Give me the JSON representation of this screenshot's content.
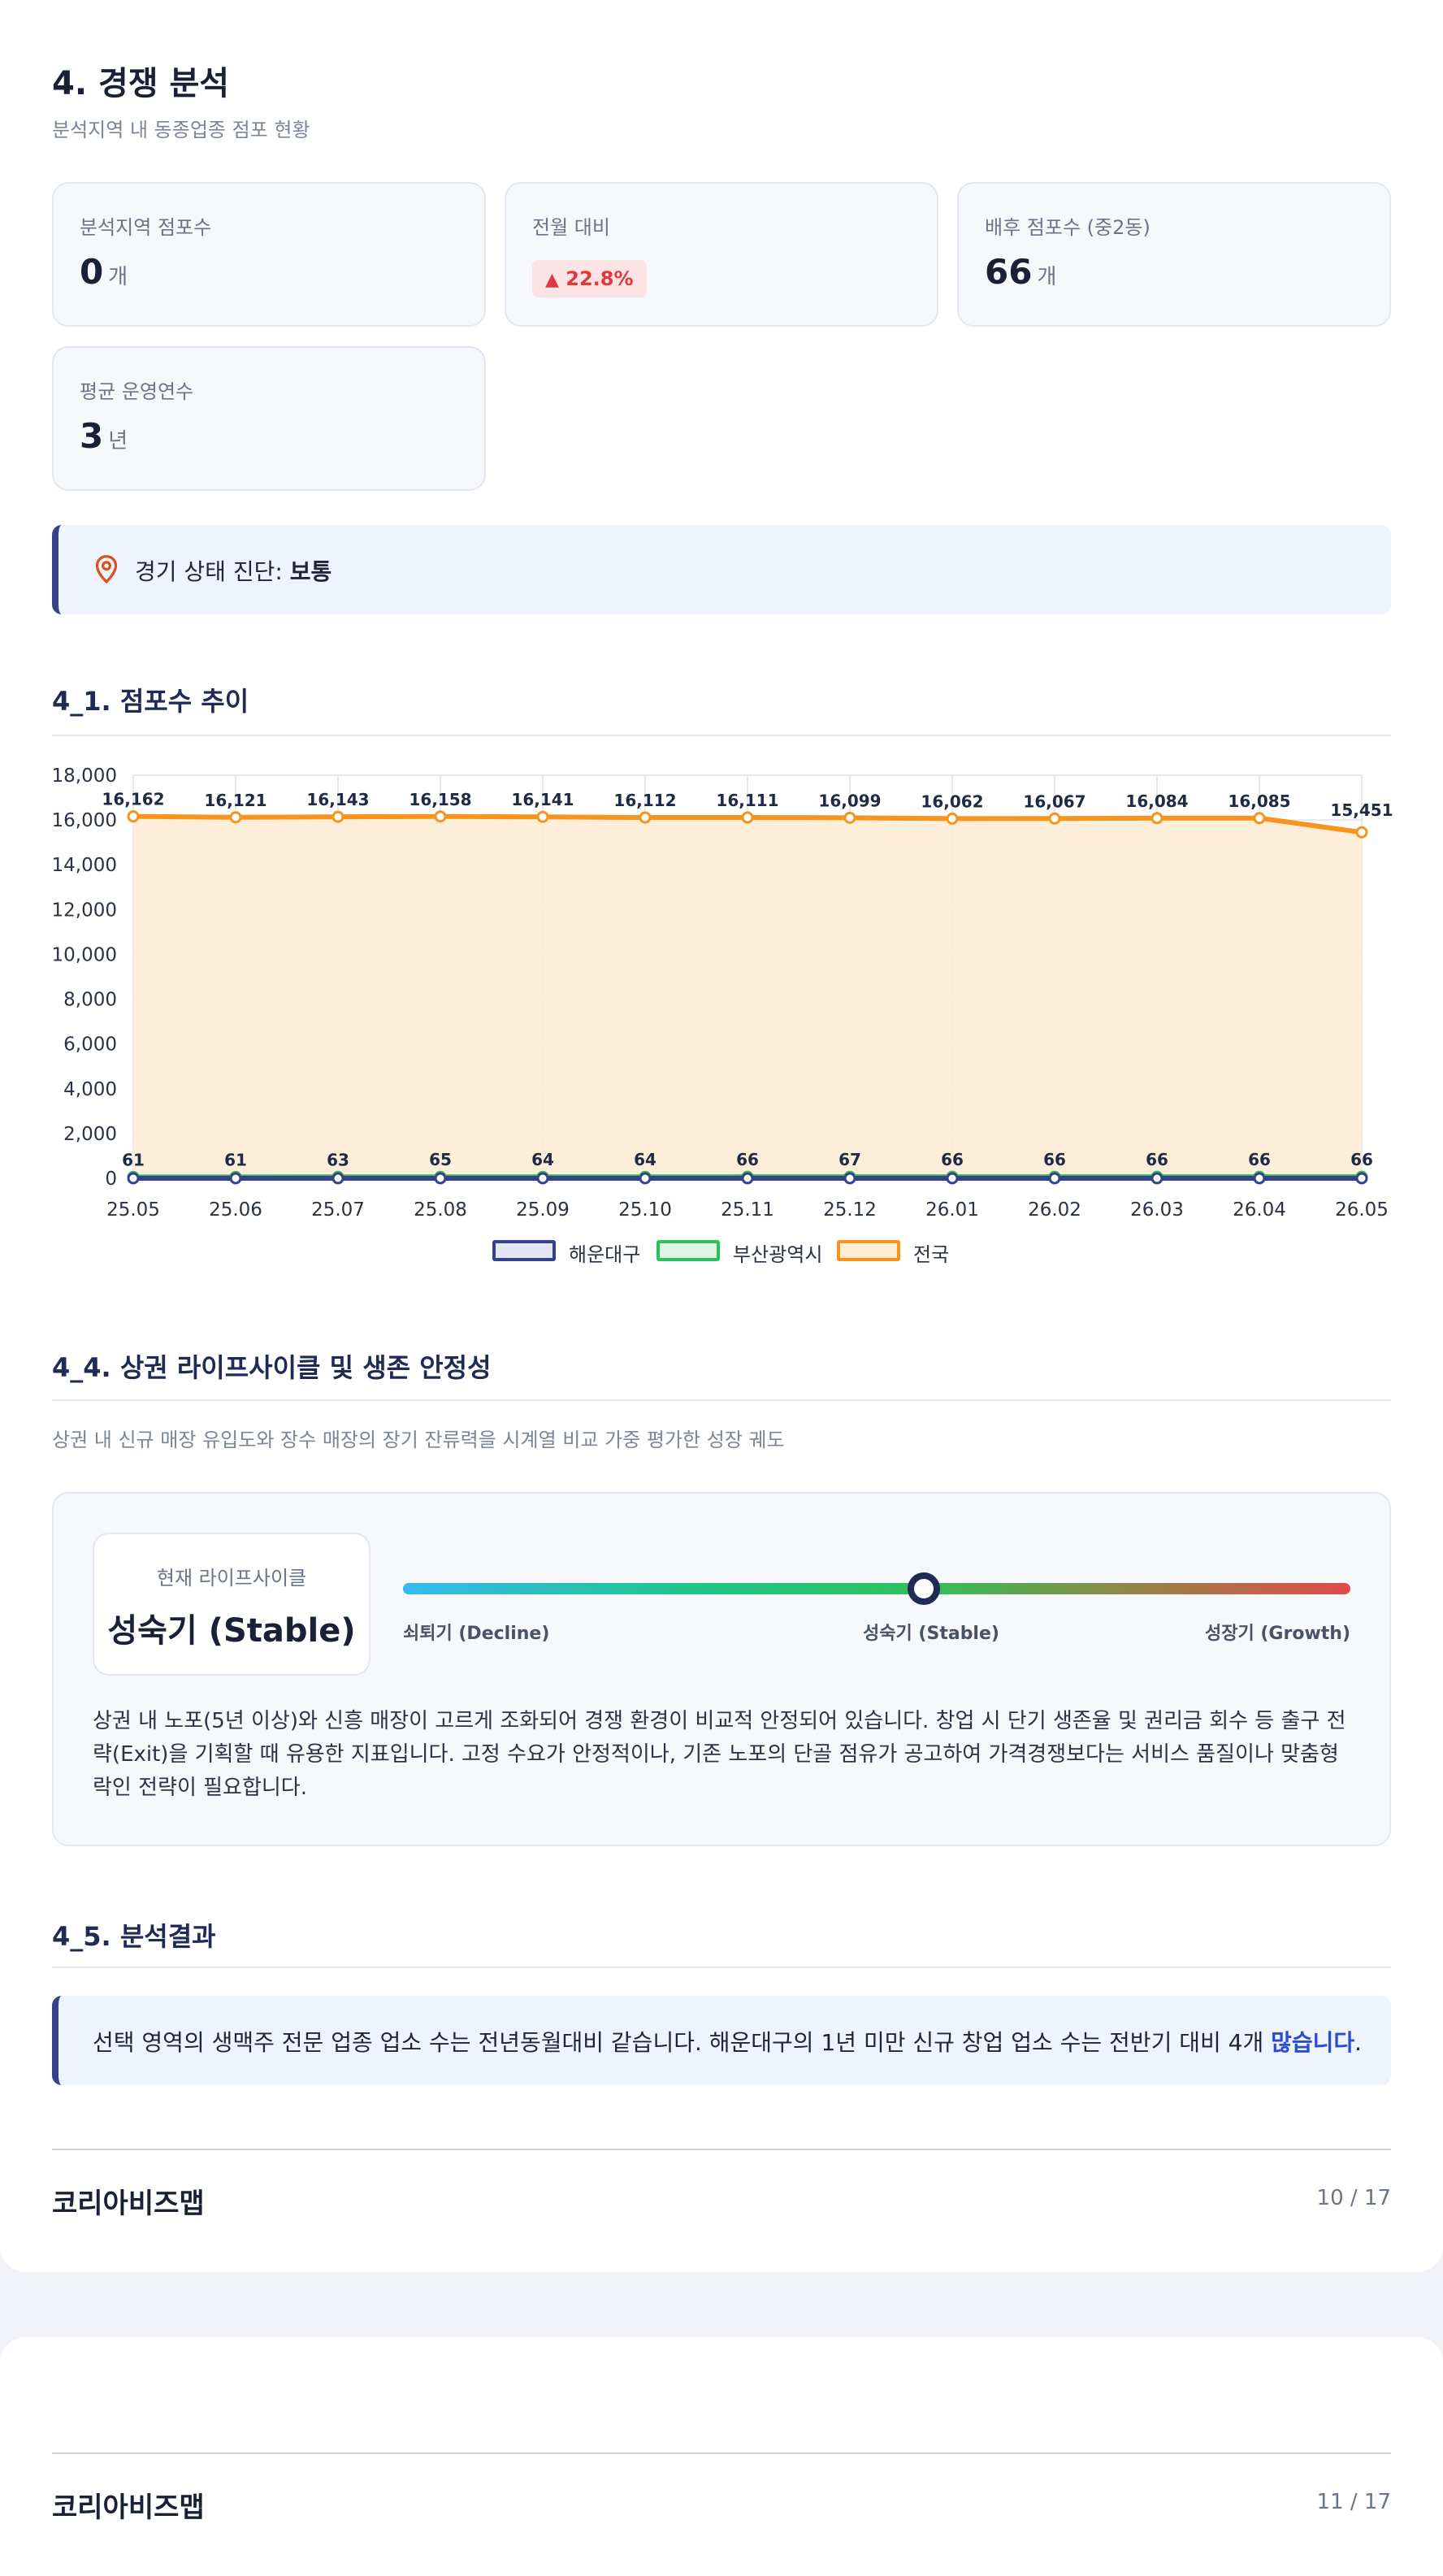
{
  "section": {
    "title": "4. 경쟁 분석",
    "subtitle": "분석지역 내 동종업종 점포 현황"
  },
  "stats": [
    {
      "label": "분석지역 점포수",
      "value": "0",
      "unit": "개"
    },
    {
      "label": "전월 대비",
      "badge": "22.8%",
      "badge_icon": "triangle-up-icon",
      "badge_color": "#e0383c"
    },
    {
      "label": "배후 점포수 (중2동)",
      "value": "66",
      "unit": "개"
    },
    {
      "label": "평균 운영연수",
      "value": "3",
      "unit": "년"
    }
  ],
  "diagnosis": {
    "icon": "map-pin-icon",
    "label": "경기 상태 진단: ",
    "value": "보통"
  },
  "store_trend": {
    "title": "4_1. 점포수 추이"
  },
  "chart_data": {
    "type": "area",
    "categories": [
      "25.05",
      "25.06",
      "25.07",
      "25.08",
      "25.09",
      "25.10",
      "25.11",
      "25.12",
      "26.01",
      "26.02",
      "26.03",
      "26.04",
      "26.05"
    ],
    "y_ticks": [
      "0",
      "2,000",
      "4,000",
      "6,000",
      "8,000",
      "10,000",
      "12,000",
      "14,000",
      "16,000",
      "18,000"
    ],
    "ylim": [
      0,
      18000
    ],
    "grid": true,
    "legend_position": "bottom",
    "series": [
      {
        "name": "해운대구",
        "color": "#34428a",
        "fill": "#e3e7f5",
        "values": [
          0,
          0,
          0,
          0,
          0,
          0,
          0,
          0,
          0,
          0,
          0,
          0,
          0
        ],
        "labels": []
      },
      {
        "name": "부산광역시",
        "color": "#2ec05a",
        "fill": "#dcf6e3",
        "values": [
          61,
          61,
          63,
          65,
          64,
          64,
          66,
          67,
          66,
          66,
          66,
          66,
          66
        ],
        "labels": [
          "61",
          "61",
          "63",
          "65",
          "64",
          "64",
          "66",
          "67",
          "66",
          "66",
          "66",
          "66",
          "66"
        ]
      },
      {
        "name": "전국",
        "color": "#f7941d",
        "fill": "#fdecd6",
        "values": [
          16162,
          16121,
          16143,
          16158,
          16141,
          16112,
          16111,
          16099,
          16062,
          16067,
          16084,
          16085,
          15451
        ],
        "labels": [
          "16,162",
          "16,121",
          "16,143",
          "16,158",
          "16,141",
          "16,112",
          "16,111",
          "16,099",
          "16,062",
          "16,067",
          "16,084",
          "16,085",
          "15,451"
        ]
      }
    ]
  },
  "lifecycle": {
    "title": "4_4. 상권 라이프사이클 및 생존 안정성",
    "description": "상권 내 신규 매장 유입도와 장수 매장의 장기 잔류력을 시계열 비교 가중 평가한 성장 궤도",
    "current_label": "현재 라이프사이클",
    "current_value": "성숙기 (Stable)",
    "position": 0.55,
    "scale": {
      "left": "쇠퇴기 (Decline)",
      "middle": "성숙기 (Stable)",
      "right": "성장기 (Growth)"
    },
    "body": "상권 내 노포(5년 이상)와 신흥 매장이 고르게 조화되어 경쟁 환경이 비교적 안정되어 있습니다. 창업 시 단기 생존율 및 권리금 회수 등 출구 전략(Exit)을 기획할 때 유용한 지표입니다. 고정 수요가 안정적이나, 기존 노포의 단골 점유가 공고하여 가격경쟁보다는 서비스 품질이나 맞춤형 락인 전략이 필요합니다."
  },
  "result": {
    "title": "4_5. 분석결과",
    "text_before": "선택 영역의 생맥주 전문 업종 업소 수는 전년동월대비 같습니다. 해운대구의 1년 미만 신규 창업 업소 수는 전반기 대비 4개 ",
    "highlight": "많습니다",
    "text_after": "."
  },
  "footer1": {
    "brand": "코리아비즈맵",
    "page": "10 / 17"
  },
  "footer2": {
    "brand": "코리아비즈맵",
    "page": "11 / 17"
  }
}
